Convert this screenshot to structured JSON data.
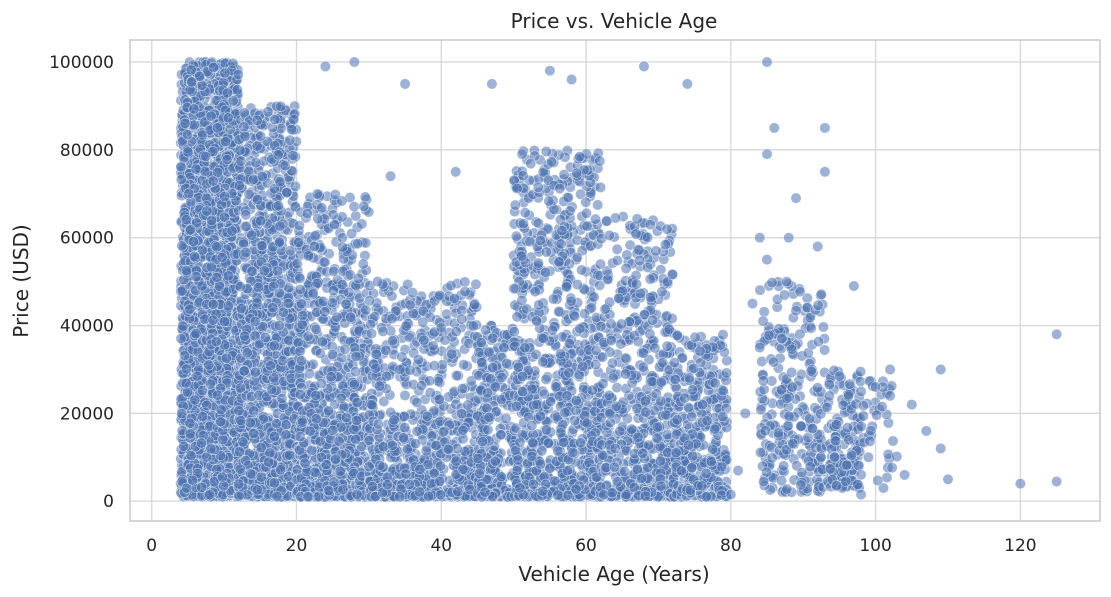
{
  "chart_data": {
    "type": "scatter",
    "title": "Price vs. Vehicle Age",
    "xlabel": "Vehicle Age (Years)",
    "ylabel": "Price (USD)",
    "xlim": [
      -3,
      131
    ],
    "ylim": [
      -4500,
      105000
    ],
    "xticks": [
      0,
      20,
      40,
      60,
      80,
      100,
      120
    ],
    "yticks": [
      0,
      20000,
      40000,
      60000,
      80000,
      100000
    ],
    "grid": true,
    "color": "#4c72b0",
    "outliers": [
      [
        120,
        4000
      ],
      [
        125,
        4500
      ],
      [
        125,
        38000
      ],
      [
        110,
        5000
      ],
      [
        109,
        12000
      ],
      [
        109,
        30000
      ],
      [
        107,
        16000
      ],
      [
        105,
        22000
      ],
      [
        104,
        6000
      ],
      [
        102,
        30000
      ],
      [
        102,
        24000
      ],
      [
        101,
        26000
      ],
      [
        100,
        26000
      ],
      [
        99,
        10000
      ],
      [
        98,
        1500
      ],
      [
        98,
        25000
      ],
      [
        97,
        49000
      ],
      [
        93,
        85000
      ],
      [
        93,
        75000
      ],
      [
        85,
        100000
      ],
      [
        86,
        85000
      ],
      [
        85,
        79000
      ],
      [
        89,
        69000
      ],
      [
        88,
        60000
      ],
      [
        92,
        58000
      ],
      [
        84,
        60000
      ],
      [
        85,
        55000
      ],
      [
        83,
        45000
      ],
      [
        84,
        35000
      ],
      [
        82,
        20000
      ],
      [
        81,
        7000
      ],
      [
        80,
        1500
      ],
      [
        68,
        99000
      ],
      [
        74,
        95000
      ],
      [
        47,
        95000
      ],
      [
        35,
        95000
      ],
      [
        58,
        96000
      ],
      [
        55,
        98000
      ],
      [
        28,
        100000
      ],
      [
        24,
        99000
      ],
      [
        42,
        75000
      ],
      [
        33,
        74000
      ]
    ]
  }
}
